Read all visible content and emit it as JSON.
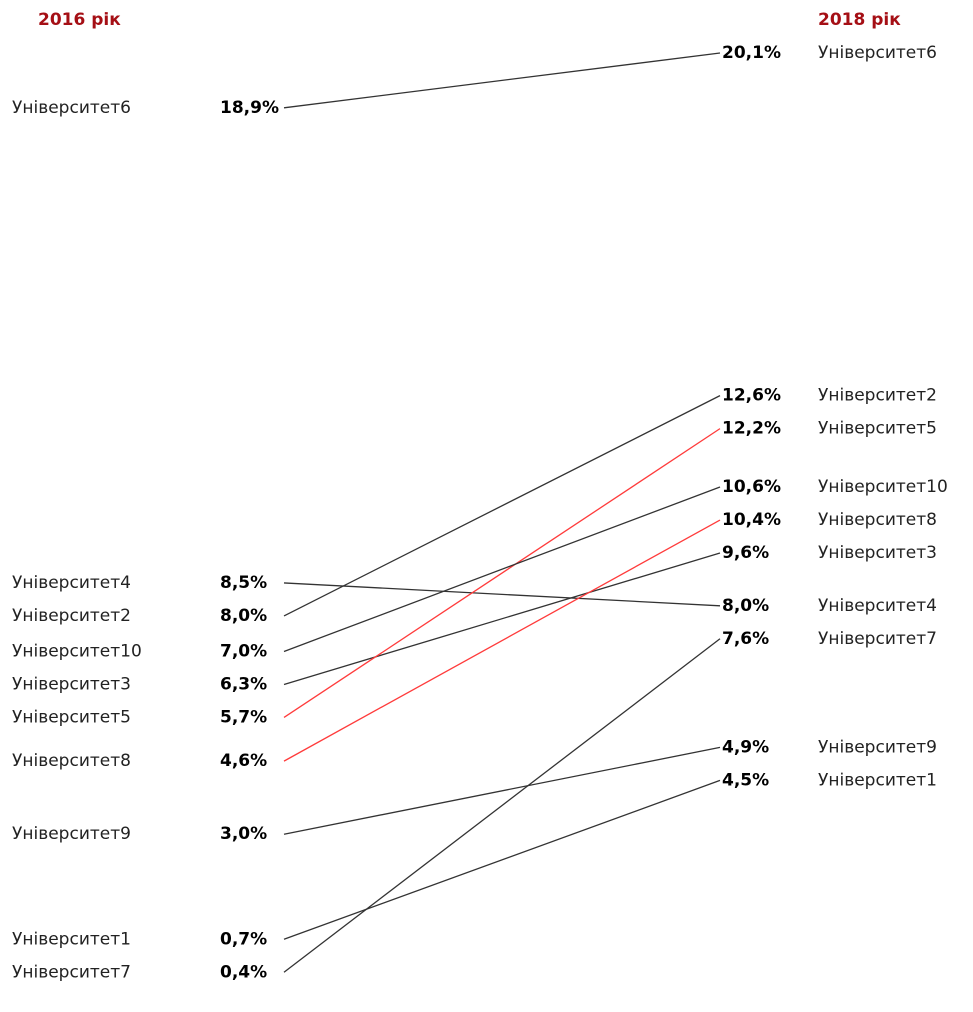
{
  "chart_data": {
    "type": "slope",
    "categories": [
      "Університет1",
      "Університет2",
      "Університет3",
      "Університет4",
      "Університет5",
      "Університет6",
      "Університет7",
      "Університет8",
      "Університет9",
      "Університет10"
    ],
    "line_colors": [
      "#333333",
      "#333333",
      "#333333",
      "#333333",
      "#ff3b3b",
      "#333333",
      "#333333",
      "#ff3b3b",
      "#333333",
      "#333333"
    ],
    "series": [
      {
        "name": "2016 рік",
        "color": "#a50f15",
        "values": [
          0.7,
          8.0,
          6.3,
          8.5,
          5.7,
          18.9,
          0.4,
          4.6,
          3.0,
          7.0
        ],
        "value_labels": [
          "0,7%",
          "8,0%",
          "6,3%",
          "8,5%",
          "5,7%",
          "18,9%",
          "0,4%",
          "4,6%",
          "3,0%",
          "7,0%"
        ]
      },
      {
        "name": "2018 рік",
        "color": "#a50f15",
        "values": [
          4.5,
          12.6,
          9.6,
          8.0,
          12.2,
          20.1,
          7.6,
          10.4,
          4.9,
          10.6
        ],
        "value_labels": [
          "4,5%",
          "12,6%",
          "9,6%",
          "8,0%",
          "12,2%",
          "20,1%",
          "7,6%",
          "10,4%",
          "4,9%",
          "10,6%"
        ]
      }
    ]
  }
}
